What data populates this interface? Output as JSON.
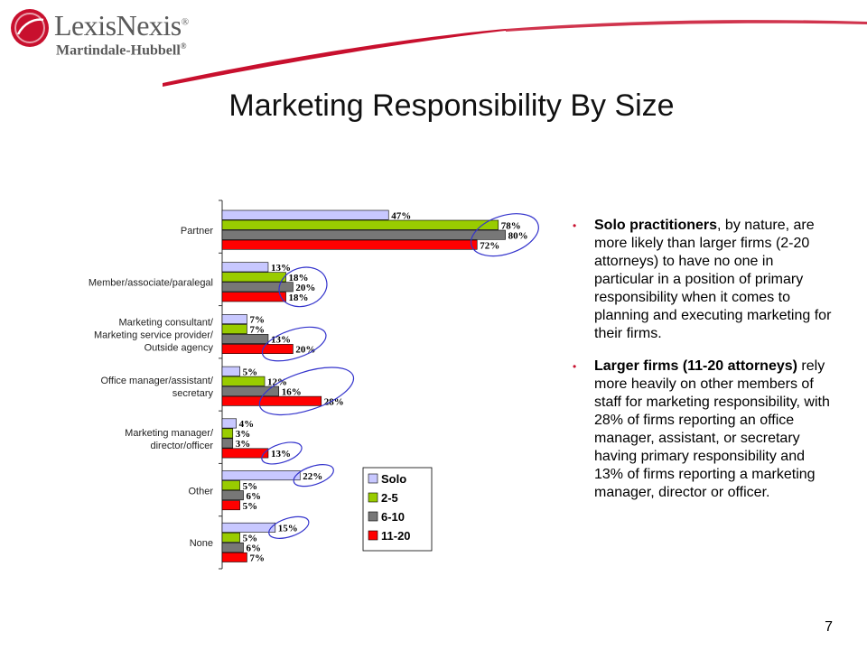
{
  "header": {
    "brand": "LexisNexis",
    "brand_mark": "®",
    "subbrand": "Martindale-Hubbell",
    "subbrand_mark": "®"
  },
  "slide": {
    "title": "Marketing Responsibility By Size",
    "page_number": "7"
  },
  "colors": {
    "Solo": "#c8c8ff",
    "2-5": "#99cc00",
    "6-10": "#777777",
    "11-20": "#ff0000",
    "highlight_ellipse": "#3333cc",
    "brand_red": "#c8102e"
  },
  "chart_data": {
    "type": "bar",
    "orientation": "horizontal",
    "categories": [
      "Partner",
      "Member/associate/paralegal",
      "Marketing consultant/\nMarketing service provider/\nOutside agency",
      "Office manager/assistant/\nsecretary",
      "Marketing manager/\ndirector/officer",
      "Other",
      "None"
    ],
    "series": [
      {
        "name": "Solo",
        "values": [
          47,
          13,
          7,
          5,
          4,
          22,
          15
        ]
      },
      {
        "name": "2-5",
        "values": [
          78,
          18,
          7,
          12,
          3,
          5,
          5
        ]
      },
      {
        "name": "6-10",
        "values": [
          80,
          20,
          13,
          16,
          3,
          6,
          6
        ]
      },
      {
        "name": "11-20",
        "values": [
          72,
          18,
          20,
          28,
          13,
          5,
          7
        ]
      }
    ],
    "value_suffix": "%",
    "xlim": [
      0,
      100
    ],
    "legend_position": "bottom-right",
    "grid": false,
    "highlights": [
      {
        "category": 0,
        "series": [
          1,
          2,
          3
        ]
      },
      {
        "category": 1,
        "series": [
          1,
          2,
          3
        ]
      },
      {
        "category": 2,
        "series": [
          2,
          3
        ]
      },
      {
        "category": 3,
        "series": [
          1,
          2,
          3
        ]
      },
      {
        "category": 4,
        "series": [
          3
        ]
      },
      {
        "category": 5,
        "series": [
          0
        ]
      },
      {
        "category": 6,
        "series": [
          0
        ]
      }
    ]
  },
  "bullets": [
    {
      "bold": "Solo practitioners",
      "text": ", by nature, are more likely than larger firms (2-20 attorneys) to have no one in particular in a position of primary responsibility when it comes to planning and executing marketing for their firms."
    },
    {
      "bold": "Larger firms (11-20 attorneys)",
      "text": " rely more heavily on other members of staff for marketing responsibility, with 28% of firms reporting an office manager, assistant, or secretary having primary responsibility and 13% of firms reporting a marketing manager, director or officer."
    }
  ]
}
